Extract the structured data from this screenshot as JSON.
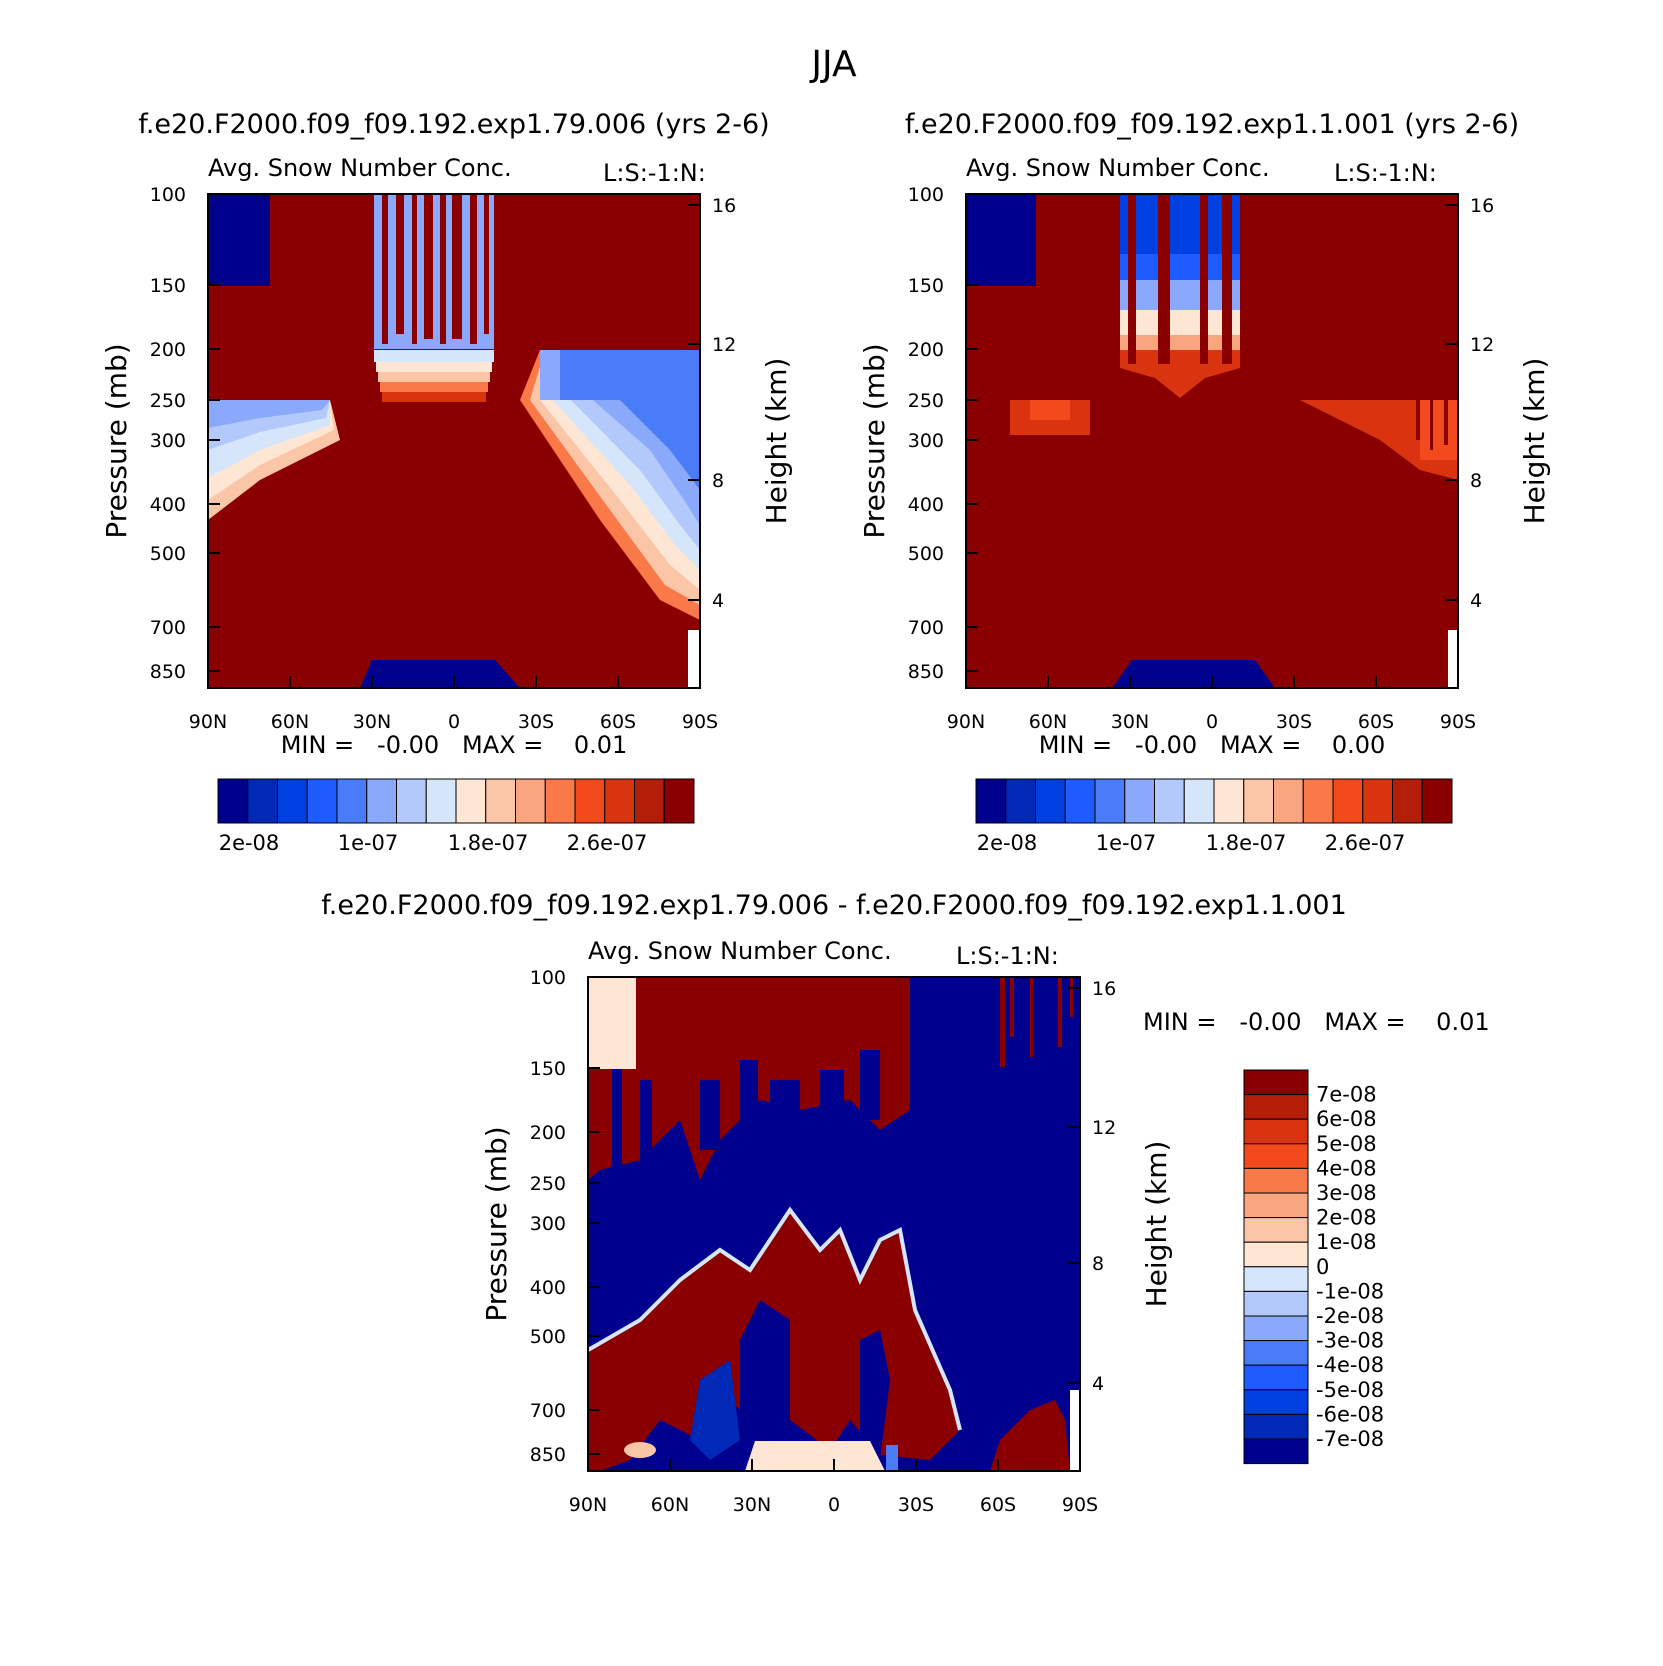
{
  "title": "JJA",
  "colors": {
    "base": [
      "#00008f",
      "#0029b8",
      "#003fe0",
      "#1f5cff",
      "#4a7cf7",
      "#8aa9fa",
      "#b3c9fb",
      "#d6e6fa",
      "#fde6d3",
      "#fbc5a8",
      "#f9a580",
      "#f97a48",
      "#f24a1c",
      "#d9340f",
      "#b21e08",
      "#8a0000"
    ],
    "diff": [
      "#00008f",
      "#0029b8",
      "#003fe0",
      "#1f5cff",
      "#4a7cf7",
      "#8aa9fa",
      "#b3c9fb",
      "#d6e6fa",
      "#fde6d3",
      "#fbc5a8",
      "#f9a580",
      "#f97a48",
      "#f24a1c",
      "#d9340f",
      "#b21e08",
      "#8a0000"
    ]
  },
  "chart_data": [
    {
      "type": "heatmap",
      "caption": "f.e20.F2000.f09_f09.192.exp1.79.006 (yrs 2-6)",
      "title": "Avg. Snow Number Conc.",
      "right_title": "L:S:-1:N:",
      "ylabel": "Pressure (mb)",
      "ylabel_right": "Height (km)",
      "x_ticks": [
        "90N",
        "60N",
        "30N",
        "0",
        "30S",
        "60S",
        "90S"
      ],
      "y_ticks": [
        "100",
        "150",
        "200",
        "250",
        "300",
        "400",
        "500",
        "700",
        "850"
      ],
      "y_ticks_right": [
        "16",
        "12",
        "8",
        "4"
      ],
      "minmax": "MIN =   -0.00   MAX =    0.01",
      "colorbar_labels": [
        "2e-08",
        "1e-07",
        "1.8e-07",
        "2.6e-07"
      ]
    },
    {
      "type": "heatmap",
      "caption": "f.e20.F2000.f09_f09.192.exp1.1.001 (yrs 2-6)",
      "title": "Avg. Snow Number Conc.",
      "right_title": "L:S:-1:N:",
      "ylabel": "Pressure (mb)",
      "ylabel_right": "Height (km)",
      "x_ticks": [
        "90N",
        "60N",
        "30N",
        "0",
        "30S",
        "60S",
        "90S"
      ],
      "y_ticks": [
        "100",
        "150",
        "200",
        "250",
        "300",
        "400",
        "500",
        "700",
        "850"
      ],
      "y_ticks_right": [
        "16",
        "12",
        "8",
        "4"
      ],
      "minmax": "MIN =   -0.00   MAX =    0.00",
      "colorbar_labels": [
        "2e-08",
        "1e-07",
        "1.8e-07",
        "2.6e-07"
      ]
    },
    {
      "type": "heatmap",
      "caption": "f.e20.F2000.f09_f09.192.exp1.79.006 - f.e20.F2000.f09_f09.192.exp1.1.001",
      "title": "Avg. Snow Number Conc.",
      "right_title": "L:S:-1:N:",
      "ylabel": "Pressure (mb)",
      "ylabel_right": "Height (km)",
      "x_ticks": [
        "90N",
        "60N",
        "30N",
        "0",
        "30S",
        "60S",
        "90S"
      ],
      "y_ticks": [
        "100",
        "150",
        "200",
        "250",
        "300",
        "400",
        "500",
        "700",
        "850"
      ],
      "y_ticks_right": [
        "16",
        "12",
        "8",
        "4"
      ],
      "minmax": "MIN =   -0.00   MAX =    0.01",
      "colorbar_labels": [
        "7e-08",
        "6e-08",
        "5e-08",
        "4e-08",
        "3e-08",
        "2e-08",
        "1e-08",
        "0",
        "-1e-08",
        "-2e-08",
        "-3e-08",
        "-4e-08",
        "-5e-08",
        "-6e-08",
        "-7e-08"
      ]
    }
  ]
}
